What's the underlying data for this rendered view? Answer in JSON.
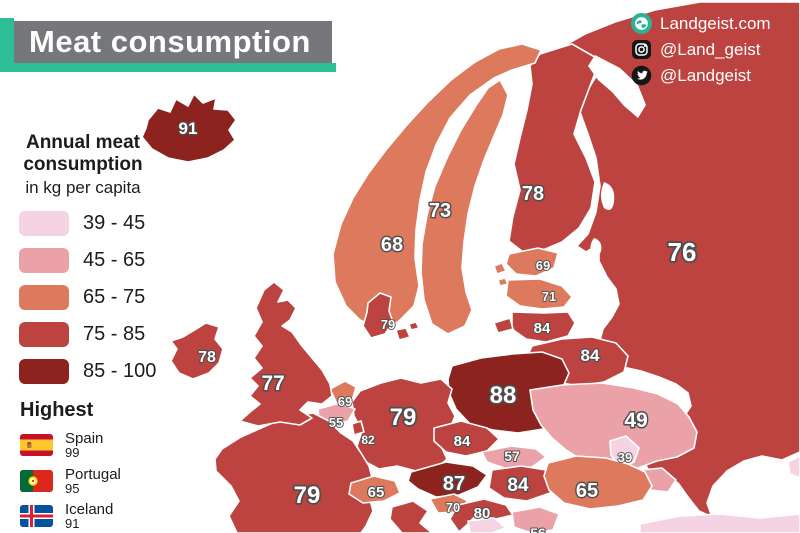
{
  "header": {
    "title": "Meat consumption",
    "bar_color": "#76777a",
    "accent_color": "#2dbd97"
  },
  "social": {
    "website": {
      "icon": "globe-icon",
      "label": "Landgeist.com"
    },
    "instagram": {
      "icon": "instagram-icon",
      "label": "@Land_geist"
    },
    "twitter": {
      "icon": "twitter-icon",
      "label": "@Landgeist"
    }
  },
  "legend": {
    "heading": "Annual meat consumption",
    "subheading": "in kg per capita",
    "ranges": [
      {
        "label": "39 - 45",
        "color": "#f5d3e2"
      },
      {
        "label": "45 - 65",
        "color": "#eaa1a8"
      },
      {
        "label": "65 - 75",
        "color": "#dd7a5e"
      },
      {
        "label": "75 - 85",
        "color": "#bc4340"
      },
      {
        "label": "85 - 100",
        "color": "#8c231e"
      }
    ]
  },
  "highest": {
    "heading": "Highest",
    "entries": [
      {
        "country": "Spain",
        "value": "99",
        "flag": "spain-flag"
      },
      {
        "country": "Portugal",
        "value": "95",
        "flag": "portugal-flag"
      },
      {
        "country": "Iceland",
        "value": "91",
        "flag": "iceland-flag"
      }
    ]
  },
  "map": {
    "sea_color": "#ffffff",
    "border_color": "#ffffff",
    "unit": "kg per capita",
    "countries": [
      {
        "id": "russia",
        "name": "Russia",
        "value": 76,
        "range": "75 - 85"
      },
      {
        "id": "finland",
        "name": "Finland",
        "value": 78,
        "range": "75 - 85"
      },
      {
        "id": "sweden",
        "name": "Sweden",
        "value": 73,
        "range": "65 - 75"
      },
      {
        "id": "norway",
        "name": "Norway",
        "value": 68,
        "range": "65 - 75"
      },
      {
        "id": "iceland",
        "name": "Iceland",
        "value": 91,
        "range": "85 - 100"
      },
      {
        "id": "estonia",
        "name": "Estonia",
        "value": 69,
        "range": "65 - 75"
      },
      {
        "id": "latvia",
        "name": "Latvia",
        "value": 71,
        "range": "65 - 75"
      },
      {
        "id": "lithuania",
        "name": "Lithuania",
        "value": 84,
        "range": "75 - 85"
      },
      {
        "id": "kaliningrad",
        "name": "Kaliningrad (Russia)",
        "value": null,
        "range": "75 - 85"
      },
      {
        "id": "belarus",
        "name": "Belarus",
        "value": 84,
        "range": "75 - 85"
      },
      {
        "id": "poland",
        "name": "Poland",
        "value": 88,
        "range": "85 - 100"
      },
      {
        "id": "germany",
        "name": "Germany",
        "value": 79,
        "range": "75 - 85"
      },
      {
        "id": "denmark",
        "name": "Denmark",
        "value": 79,
        "range": "75 - 85"
      },
      {
        "id": "netherlands",
        "name": "Netherlands",
        "value": 69,
        "range": "65 - 75"
      },
      {
        "id": "belgium",
        "name": "Belgium",
        "value": 55,
        "range": "45 - 65"
      },
      {
        "id": "luxembourg",
        "name": "Luxembourg",
        "value": 82,
        "range": "75 - 85"
      },
      {
        "id": "france",
        "name": "France",
        "value": 79,
        "range": "75 - 85"
      },
      {
        "id": "switzerland",
        "name": "Switzerland",
        "value": 65,
        "range": "65 - 75"
      },
      {
        "id": "uk",
        "name": "United Kingdom",
        "value": 77,
        "range": "75 - 85"
      },
      {
        "id": "ireland",
        "name": "Ireland",
        "value": 78,
        "range": "75 - 85"
      },
      {
        "id": "czechia",
        "name": "Czechia",
        "value": 84,
        "range": "75 - 85"
      },
      {
        "id": "slovakia",
        "name": "Slovakia",
        "value": 57,
        "range": "45 - 65"
      },
      {
        "id": "austria",
        "name": "Austria",
        "value": 87,
        "range": "85 - 100"
      },
      {
        "id": "hungary",
        "name": "Hungary",
        "value": 84,
        "range": "75 - 85"
      },
      {
        "id": "slovenia",
        "name": "Slovenia",
        "value": 70,
        "range": "65 - 75"
      },
      {
        "id": "croatia",
        "name": "Croatia",
        "value": 80,
        "range": "75 - 85"
      },
      {
        "id": "bosnia",
        "name": "Bosnia and Herzegovina",
        "value": null,
        "range": "39 - 45"
      },
      {
        "id": "serbia",
        "name": "Serbia",
        "value": 56,
        "range": "45 - 65"
      },
      {
        "id": "italy",
        "name": "Italy",
        "value": null,
        "range": "75 - 85"
      },
      {
        "id": "ukraine",
        "name": "Ukraine",
        "value": 49,
        "range": "45 - 65"
      },
      {
        "id": "crimea",
        "name": "Crimea",
        "value": null,
        "range": "45 - 65"
      },
      {
        "id": "moldova",
        "name": "Moldova",
        "value": 39,
        "range": "39 - 45"
      },
      {
        "id": "romania",
        "name": "Romania",
        "value": 65,
        "range": "65 - 75"
      },
      {
        "id": "turkey",
        "name": "Turkey",
        "value": null,
        "range": "39 - 45"
      },
      {
        "id": "georgia",
        "name": "Georgia",
        "value": null,
        "range": "39 - 45"
      }
    ]
  }
}
